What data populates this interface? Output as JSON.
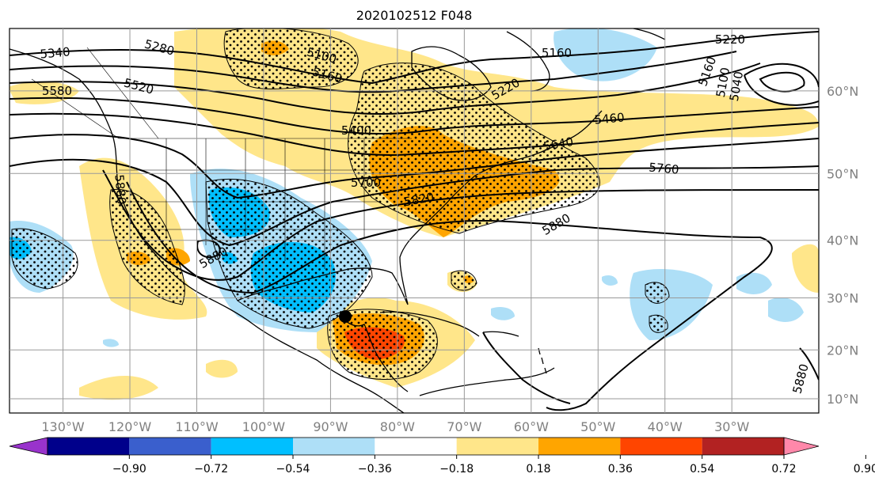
{
  "title": "2020102512 F048",
  "map": {
    "projection": "Mercator",
    "lon_range": [
      -138,
      -17
    ],
    "lat_range": [
      7,
      66
    ],
    "lon_ticks": [
      "130°W",
      "120°W",
      "110°W",
      "100°W",
      "90°W",
      "80°W",
      "70°W",
      "60°W",
      "50°W",
      "40°W",
      "30°W"
    ],
    "lat_ticks": [
      "60°N",
      "50°N",
      "40°N",
      "30°N",
      "20°N",
      "10°N"
    ],
    "gridlines": true,
    "contour_labels": [
      "5340",
      "5280",
      "5100",
      "5160",
      "5220",
      "5160",
      "5100",
      "5040",
      "5160",
      "5580",
      "5520",
      "5220",
      "5460",
      "5400",
      "5640",
      "5760",
      "5700",
      "5820",
      "5880",
      "5880",
      "5880",
      "5880"
    ],
    "marker": "storm-position-dot"
  },
  "colorbar": {
    "orientation": "horizontal",
    "extend": "both",
    "ticks": [
      "−0.90",
      "−0.72",
      "−0.54",
      "−0.36",
      "−0.18",
      "0.18",
      "0.36",
      "0.54",
      "0.72",
      "0.90"
    ],
    "colors": [
      "#9933cc",
      "#00008b",
      "#3a5fcd",
      "#00bfff",
      "#aedff7",
      "#ffffff",
      "#ffe68a",
      "#ffa500",
      "#ff4500",
      "#b22222",
      "#ff88aa"
    ]
  }
}
